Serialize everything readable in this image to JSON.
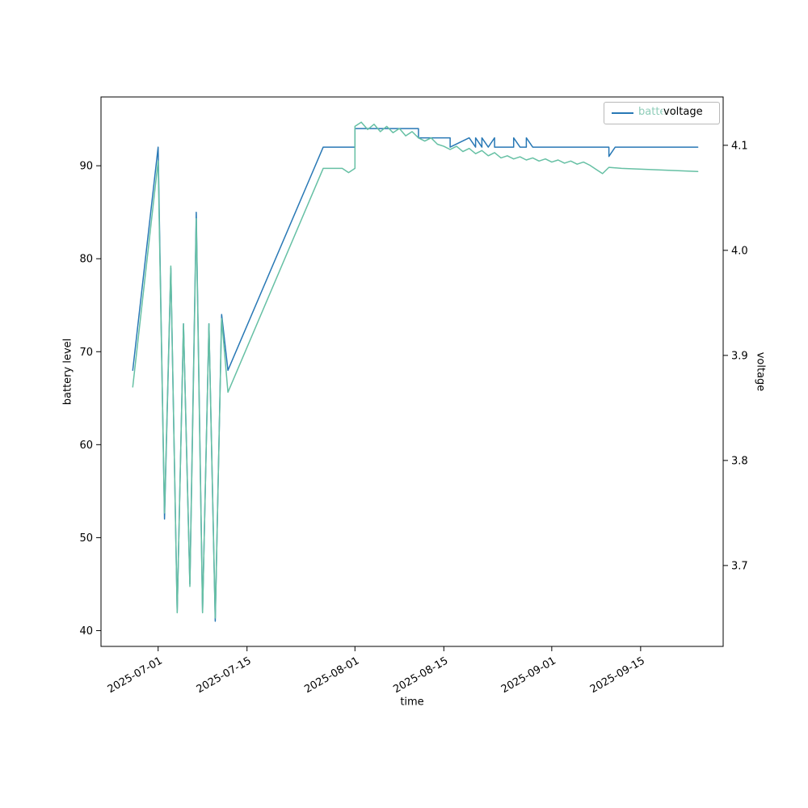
{
  "figure": {
    "xlabel": "time",
    "ylabel_left": "battery level",
    "ylabel_right": "voltage",
    "legend": {
      "ghost_label": "battery",
      "label": "voltage",
      "sample_color": "#2878b5"
    }
  },
  "chart_data": {
    "type": "line",
    "title": "",
    "xlabel": "time",
    "ylabel": "battery level",
    "y2label": "voltage",
    "grid": false,
    "legend_position": "upper right",
    "xlim": [
      "2025-06-22 12:00",
      "2025-09-28 12:00"
    ],
    "ylim": [
      38.3,
      97.4
    ],
    "y2lim": [
      3.623,
      4.146
    ],
    "x_ticks": [
      "2025-07-01",
      "2025-07-15",
      "2025-08-01",
      "2025-08-15",
      "2025-09-01",
      "2025-09-15"
    ],
    "y_ticks": [
      40,
      50,
      60,
      70,
      80,
      90
    ],
    "y2_ticks": [
      3.7,
      3.8,
      3.9,
      4.0,
      4.1
    ],
    "series": [
      {
        "name": "battery",
        "axis": "left",
        "color": "#2878b5",
        "points": [
          [
            "2025-06-27",
            68
          ],
          [
            "2025-07-01",
            92
          ],
          [
            "2025-07-02",
            52
          ],
          [
            "2025-07-03",
            79
          ],
          [
            "2025-07-04",
            42
          ],
          [
            "2025-07-05",
            73
          ],
          [
            "2025-07-06",
            45
          ],
          [
            "2025-07-07",
            85
          ],
          [
            "2025-07-08",
            42
          ],
          [
            "2025-07-09",
            73
          ],
          [
            "2025-07-10",
            41
          ],
          [
            "2025-07-11",
            74
          ],
          [
            "2025-07-12",
            68
          ],
          [
            "2025-07-27",
            92
          ],
          [
            "2025-08-01",
            92
          ],
          [
            "2025-08-01",
            94
          ],
          [
            "2025-08-11",
            94
          ],
          [
            "2025-08-11",
            93
          ],
          [
            "2025-08-16",
            93
          ],
          [
            "2025-08-16",
            92
          ],
          [
            "2025-08-19",
            93
          ],
          [
            "2025-08-20",
            92
          ],
          [
            "2025-08-20",
            93
          ],
          [
            "2025-08-21",
            92
          ],
          [
            "2025-08-21",
            93
          ],
          [
            "2025-08-22",
            92
          ],
          [
            "2025-08-23",
            93
          ],
          [
            "2025-08-23",
            92
          ],
          [
            "2025-08-26",
            92
          ],
          [
            "2025-08-26",
            93
          ],
          [
            "2025-08-27",
            92
          ],
          [
            "2025-08-28",
            92
          ],
          [
            "2025-08-28",
            93
          ],
          [
            "2025-08-29",
            92
          ],
          [
            "2025-09-10",
            92
          ],
          [
            "2025-09-10",
            91
          ],
          [
            "2025-09-11",
            92
          ],
          [
            "2025-09-24",
            92
          ]
        ]
      },
      {
        "name": "voltage",
        "axis": "right",
        "color": "#66c0a4",
        "points": [
          [
            "2025-06-27",
            3.87
          ],
          [
            "2025-07-01",
            4.085
          ],
          [
            "2025-07-02",
            3.75
          ],
          [
            "2025-07-03",
            3.985
          ],
          [
            "2025-07-04",
            3.655
          ],
          [
            "2025-07-05",
            3.93
          ],
          [
            "2025-07-06",
            3.68
          ],
          [
            "2025-07-07",
            4.03
          ],
          [
            "2025-07-08",
            3.655
          ],
          [
            "2025-07-09",
            3.93
          ],
          [
            "2025-07-10",
            3.65
          ],
          [
            "2025-07-11",
            3.935
          ],
          [
            "2025-07-12",
            3.865
          ],
          [
            "2025-07-27",
            4.078
          ],
          [
            "2025-07-30",
            4.078
          ],
          [
            "2025-07-31",
            4.074
          ],
          [
            "2025-08-01",
            4.078
          ],
          [
            "2025-08-01",
            4.118
          ],
          [
            "2025-08-02",
            4.122
          ],
          [
            "2025-08-03",
            4.115
          ],
          [
            "2025-08-04",
            4.12
          ],
          [
            "2025-08-05",
            4.113
          ],
          [
            "2025-08-06",
            4.118
          ],
          [
            "2025-08-07",
            4.112
          ],
          [
            "2025-08-08",
            4.116
          ],
          [
            "2025-08-09",
            4.109
          ],
          [
            "2025-08-10",
            4.113
          ],
          [
            "2025-08-11",
            4.107
          ],
          [
            "2025-08-12",
            4.104
          ],
          [
            "2025-08-13",
            4.107
          ],
          [
            "2025-08-14",
            4.101
          ],
          [
            "2025-08-15",
            4.099
          ],
          [
            "2025-08-16",
            4.096
          ],
          [
            "2025-08-17",
            4.099
          ],
          [
            "2025-08-18",
            4.094
          ],
          [
            "2025-08-19",
            4.097
          ],
          [
            "2025-08-20",
            4.092
          ],
          [
            "2025-08-21",
            4.095
          ],
          [
            "2025-08-22",
            4.09
          ],
          [
            "2025-08-23",
            4.093
          ],
          [
            "2025-08-24",
            4.088
          ],
          [
            "2025-08-25",
            4.09
          ],
          [
            "2025-08-26",
            4.087
          ],
          [
            "2025-08-27",
            4.089
          ],
          [
            "2025-08-28",
            4.086
          ],
          [
            "2025-08-29",
            4.088
          ],
          [
            "2025-08-30",
            4.085
          ],
          [
            "2025-08-31",
            4.087
          ],
          [
            "2025-09-01",
            4.084
          ],
          [
            "2025-09-02",
            4.086
          ],
          [
            "2025-09-03",
            4.083
          ],
          [
            "2025-09-04",
            4.085
          ],
          [
            "2025-09-05",
            4.082
          ],
          [
            "2025-09-06",
            4.084
          ],
          [
            "2025-09-07",
            4.081
          ],
          [
            "2025-09-08",
            4.077
          ],
          [
            "2025-09-09",
            4.073
          ],
          [
            "2025-09-10",
            4.079
          ],
          [
            "2025-09-12",
            4.078
          ],
          [
            "2025-09-24",
            4.075
          ]
        ]
      }
    ]
  }
}
